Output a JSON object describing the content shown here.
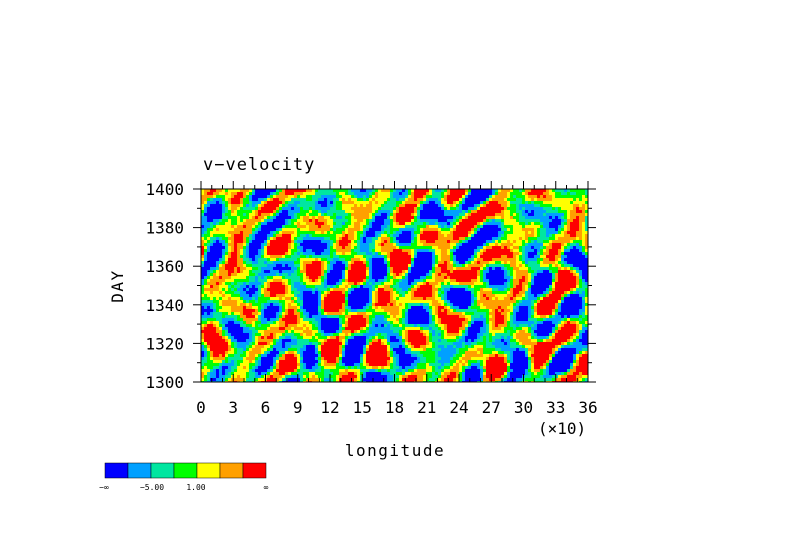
{
  "chart_data": {
    "type": "heatmap",
    "title": "v−velocity",
    "xlabel": "longitude",
    "ylabel": "DAY",
    "x_tick_labels": [
      "0",
      "3",
      "6",
      "9",
      "12",
      "15",
      "18",
      "21",
      "24",
      "27",
      "30",
      "33",
      "36"
    ],
    "x_multiplier": "(×10)",
    "y_tick_labels": [
      "1300",
      "1320",
      "1340",
      "1360",
      "1380",
      "1400"
    ],
    "xlim": [
      0,
      36
    ],
    "ylim": [
      1300,
      1400
    ],
    "colorbar": {
      "colors": [
        "#0000ff",
        "#00a0ff",
        "#00e6a0",
        "#00ff00",
        "#ffff00",
        "#ffa000",
        "#ff0000"
      ],
      "labels": [
        "−∞",
        "−5.00",
        "1.00",
        "∞"
      ]
    }
  }
}
